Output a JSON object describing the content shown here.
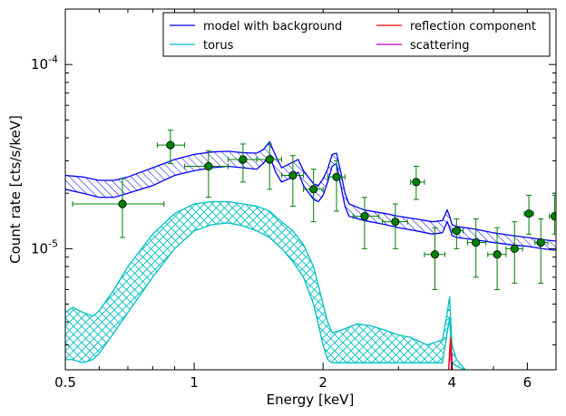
{
  "chart_data": {
    "type": "line",
    "title": "",
    "xlabel": "Energy [keV]",
    "ylabel": "Count rate [cts/s/keV]",
    "xscale": "log",
    "yscale": "log",
    "xlim": [
      0.5,
      7.0
    ],
    "ylim": [
      2.2e-06,
      0.0002
    ],
    "grid": false,
    "legend_position": "top-right",
    "x_ticks": [
      {
        "value": 0.5,
        "label": "0.5"
      },
      {
        "value": 1,
        "label": "1"
      },
      {
        "value": 2,
        "label": "2"
      },
      {
        "value": 4,
        "label": "4"
      },
      {
        "value": 6,
        "label": "6"
      }
    ],
    "y_ticks": [
      {
        "value": 1e-05,
        "base": "10",
        "exp": "-5"
      },
      {
        "value": 0.0001,
        "base": "10",
        "exp": "-4"
      }
    ],
    "legend": [
      {
        "label": "model with background",
        "color": "#0000ff"
      },
      {
        "label": "reflection component",
        "color": "#ff0000"
      },
      {
        "label": "torus",
        "color": "#00bfbf"
      },
      {
        "label": "scattering",
        "color": "#bf00bf"
      }
    ],
    "series": [
      {
        "name": "model with background",
        "color": "#0000ff",
        "x": [
          0.5,
          0.55,
          0.6,
          0.65,
          0.7,
          0.8,
          0.9,
          1.0,
          1.1,
          1.2,
          1.3,
          1.4,
          1.45,
          1.5,
          1.55,
          1.6,
          1.7,
          1.75,
          1.8,
          1.9,
          1.95,
          2.0,
          2.05,
          2.1,
          2.15,
          2.2,
          2.25,
          2.3,
          2.5,
          2.8,
          3.0,
          3.3,
          3.6,
          3.8,
          3.9,
          3.95,
          4.0,
          4.1,
          4.5,
          5.0,
          5.5,
          6.0,
          6.5,
          7.0
        ],
        "lower": [
          2.1e-05,
          2e-05,
          1.9e-05,
          1.9e-05,
          2e-05,
          2.2e-05,
          2.5e-05,
          2.65e-05,
          2.75e-05,
          2.8e-05,
          2.75e-05,
          2.7e-05,
          2.9e-05,
          3.2e-05,
          2.6e-05,
          2.3e-05,
          2.45e-05,
          2.6e-05,
          2.2e-05,
          1.85e-05,
          1.8e-05,
          1.95e-05,
          2.3e-05,
          2.8e-05,
          2.9e-05,
          2.2e-05,
          1.7e-05,
          1.5e-05,
          1.42e-05,
          1.35e-05,
          1.3e-05,
          1.25e-05,
          1.2e-05,
          1.22e-05,
          1.4e-05,
          1.3e-05,
          1.18e-05,
          1.15e-05,
          1.12e-05,
          1.08e-05,
          1.05e-05,
          1.03e-05,
          1e-05,
          9.8e-06
        ],
        "upper": [
          2.5e-05,
          2.45e-05,
          2.35e-05,
          2.35e-05,
          2.45e-05,
          2.75e-05,
          3.05e-05,
          3.25e-05,
          3.35e-05,
          3.38e-05,
          3.32e-05,
          3.3e-05,
          3.45e-05,
          3.8e-05,
          3.2e-05,
          2.75e-05,
          2.95e-05,
          3.05e-05,
          2.65e-05,
          2.25e-05,
          2.2e-05,
          2.4e-05,
          2.7e-05,
          3.25e-05,
          3.3e-05,
          2.6e-05,
          2e-05,
          1.75e-05,
          1.62e-05,
          1.55e-05,
          1.5e-05,
          1.45e-05,
          1.4e-05,
          1.42e-05,
          1.62e-05,
          1.5e-05,
          1.35e-05,
          1.32e-05,
          1.28e-05,
          1.22e-05,
          1.18e-05,
          1.15e-05,
          1.12e-05,
          1.1e-05
        ]
      },
      {
        "name": "torus",
        "color": "#00bfbf",
        "x": [
          0.5,
          0.52,
          0.55,
          0.58,
          0.6,
          0.65,
          0.7,
          0.8,
          0.9,
          1.0,
          1.1,
          1.2,
          1.3,
          1.4,
          1.5,
          1.6,
          1.7,
          1.8,
          1.9,
          2.0,
          2.05,
          2.1,
          2.2,
          2.4,
          2.6,
          2.8,
          3.0,
          3.2,
          3.5,
          3.8,
          3.9,
          3.95,
          4.0,
          4.1,
          4.3
        ],
        "lower": [
          2.5e-06,
          2.5e-06,
          2.4e-06,
          2.5e-06,
          2.7e-06,
          3.5e-06,
          4.5e-06,
          7e-06,
          1e-05,
          1.25e-05,
          1.35e-05,
          1.38e-05,
          1.33e-05,
          1.25e-05,
          1.15e-05,
          1e-05,
          8.5e-06,
          7e-06,
          5e-06,
          3e-06,
          2.5e-06,
          2.4e-06,
          2.4e-06,
          2.4e-06,
          2.4e-06,
          2.4e-06,
          2.4e-06,
          2.4e-06,
          2.4e-06,
          2.4e-06,
          3.5e-06,
          4.2e-06,
          2.4e-06,
          2.3e-06,
          2.2e-06
        ],
        "upper": [
          4.5e-06,
          4.8e-06,
          4.5e-06,
          4.3e-06,
          4.6e-06,
          6e-06,
          8e-06,
          1.2e-05,
          1.55e-05,
          1.75e-05,
          1.8e-05,
          1.8e-05,
          1.75e-05,
          1.7e-05,
          1.6e-05,
          1.4e-05,
          1.25e-05,
          1.05e-05,
          8e-06,
          5e-06,
          4e-06,
          3.5e-06,
          3.6e-06,
          3.9e-06,
          3.8e-06,
          3.6e-06,
          3.4e-06,
          3.3e-06,
          3e-06,
          3.2e-06,
          4.5e-06,
          5.5e-06,
          3e-06,
          2.5e-06,
          2.2e-06
        ]
      },
      {
        "name": "reflection component",
        "color": "#ff0000",
        "x": [
          3.93,
          3.95,
          3.97,
          3.99,
          4.01
        ],
        "y": [
          2.2e-06,
          2.8e-06,
          3.3e-06,
          2.8e-06,
          2.2e-06
        ]
      },
      {
        "name": "scattering",
        "color": "#bf00bf",
        "x": [
          3.93,
          3.95,
          3.97,
          3.99
        ],
        "y": [
          2.2e-06,
          2.6e-06,
          2.9e-06,
          2.2e-06
        ]
      }
    ],
    "data_points": {
      "color": "#008000",
      "points": [
        {
          "x": 0.68,
          "y": 1.75e-05,
          "xerr": [
            0.52,
            0.85
          ],
          "yerr": [
            1.15e-05,
            2.4e-05
          ]
        },
        {
          "x": 0.88,
          "y": 3.65e-05,
          "xerr": [
            0.82,
            0.95
          ],
          "yerr": [
            2.9e-05,
            4.4e-05
          ]
        },
        {
          "x": 1.08,
          "y": 2.8e-05,
          "xerr": [
            0.95,
            1.2
          ],
          "yerr": [
            1.9e-05,
            3.4e-05
          ]
        },
        {
          "x": 1.3,
          "y": 3.05e-05,
          "xerr": [
            1.2,
            1.4
          ],
          "yerr": [
            2.3e-05,
            3.7e-05
          ]
        },
        {
          "x": 1.5,
          "y": 3.05e-05,
          "xerr": [
            1.4,
            1.6
          ],
          "yerr": [
            2.1e-05,
            3.7e-05
          ]
        },
        {
          "x": 1.7,
          "y": 2.5e-05,
          "xerr": [
            1.6,
            1.8
          ],
          "yerr": [
            1.7e-05,
            3.2e-05
          ]
        },
        {
          "x": 1.9,
          "y": 2.1e-05,
          "xerr": [
            1.8,
            2.0
          ],
          "yerr": [
            1.4e-05,
            2.7e-05
          ]
        },
        {
          "x": 2.15,
          "y": 2.45e-05,
          "xerr": [
            2.05,
            2.25
          ],
          "yerr": [
            1.6e-05,
            3e-05
          ]
        },
        {
          "x": 2.5,
          "y": 1.5e-05,
          "xerr": [
            2.35,
            2.7
          ],
          "yerr": [
            1e-05,
            1.9e-05
          ]
        },
        {
          "x": 2.95,
          "y": 1.4e-05,
          "xerr": [
            2.75,
            3.15
          ],
          "yerr": [
            1e-05,
            1.75e-05
          ]
        },
        {
          "x": 3.3,
          "y": 2.3e-05,
          "xerr": [
            3.2,
            3.45
          ],
          "yerr": [
            1.85e-05,
            2.8e-05
          ]
        },
        {
          "x": 3.65,
          "y": 9.3e-06,
          "xerr": [
            3.45,
            3.85
          ],
          "yerr": [
            6e-06,
            1.3e-05
          ]
        },
        {
          "x": 4.1,
          "y": 1.25e-05,
          "xerr": [
            4.0,
            4.25
          ],
          "yerr": [
            1e-05,
            1.45e-05
          ]
        },
        {
          "x": 4.55,
          "y": 1.08e-05,
          "xerr": [
            4.35,
            4.8
          ],
          "yerr": [
            7e-06,
            1.45e-05
          ]
        },
        {
          "x": 5.1,
          "y": 9.3e-06,
          "xerr": [
            4.85,
            5.35
          ],
          "yerr": [
            6e-06,
            1.3e-05
          ]
        },
        {
          "x": 5.6,
          "y": 1e-05,
          "xerr": [
            5.35,
            5.85
          ],
          "yerr": [
            6.5e-06,
            1.4e-05
          ]
        },
        {
          "x": 6.05,
          "y": 1.55e-05,
          "xerr": [
            5.9,
            6.2
          ],
          "yerr": [
            1.2e-05,
            1.95e-05
          ]
        },
        {
          "x": 6.45,
          "y": 1.08e-05,
          "xerr": [
            6.25,
            6.7
          ],
          "yerr": [
            6.5e-06,
            1.45e-05
          ]
        },
        {
          "x": 6.95,
          "y": 1.5e-05,
          "xerr": [
            6.75,
            7.0
          ],
          "yerr": [
            1.2e-05,
            1.95e-05
          ]
        }
      ]
    }
  }
}
